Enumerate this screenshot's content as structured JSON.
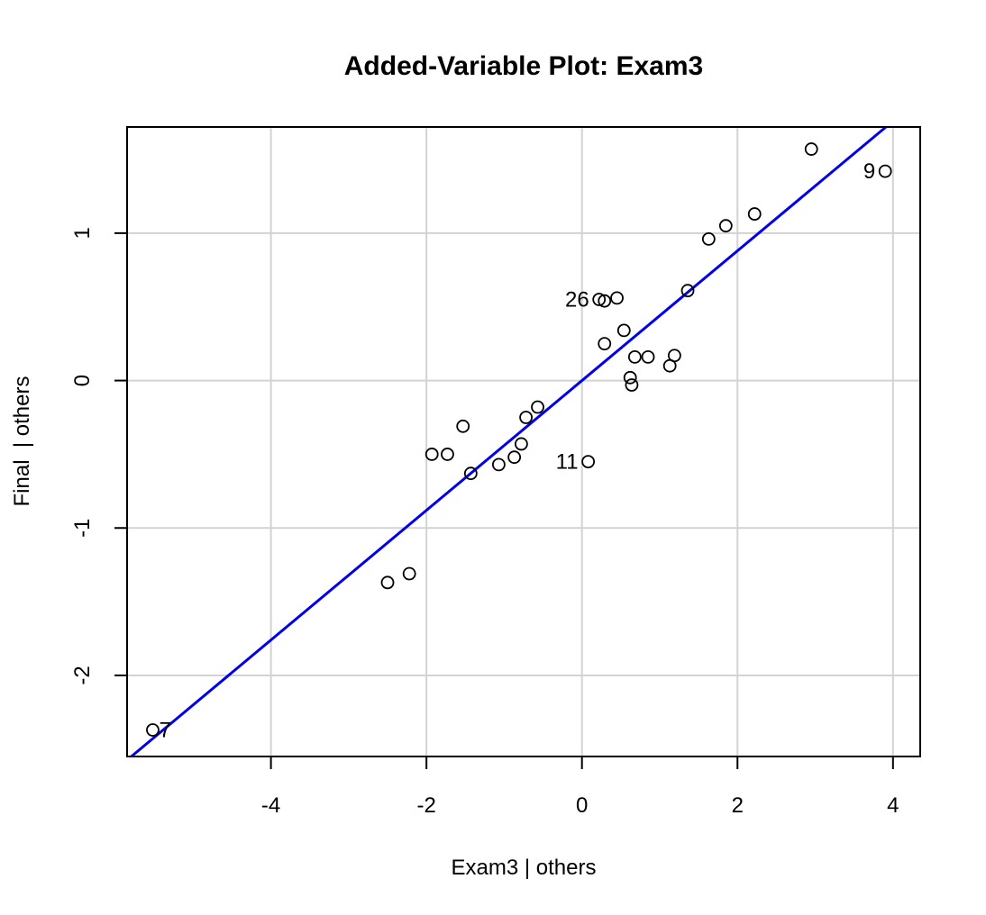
{
  "chart_data": {
    "type": "scatter",
    "title": "Added-Variable Plot: Exam3",
    "xlabel": "Exam3 | others",
    "ylabel": "Final  | others",
    "xlim": [
      -5.85,
      4.35
    ],
    "ylim": [
      -2.55,
      1.72
    ],
    "xticks": [
      -4,
      -2,
      0,
      2,
      4
    ],
    "yticks": [
      -2,
      -1,
      0,
      1
    ],
    "grid": true,
    "points": [
      {
        "x": -5.52,
        "y": -2.37,
        "label": "7"
      },
      {
        "x": -2.5,
        "y": -1.37
      },
      {
        "x": -2.22,
        "y": -1.31
      },
      {
        "x": -1.93,
        "y": -0.5
      },
      {
        "x": -1.73,
        "y": -0.5
      },
      {
        "x": -1.53,
        "y": -0.31
      },
      {
        "x": -1.43,
        "y": -0.63
      },
      {
        "x": -1.07,
        "y": -0.57
      },
      {
        "x": -0.87,
        "y": -0.52
      },
      {
        "x": -0.78,
        "y": -0.43
      },
      {
        "x": -0.72,
        "y": -0.25
      },
      {
        "x": -0.57,
        "y": -0.18
      },
      {
        "x": 0.08,
        "y": -0.55,
        "label": "11"
      },
      {
        "x": 0.22,
        "y": 0.55,
        "label": "26"
      },
      {
        "x": 0.29,
        "y": 0.54
      },
      {
        "x": 0.29,
        "y": 0.25
      },
      {
        "x": 0.45,
        "y": 0.56
      },
      {
        "x": 0.54,
        "y": 0.34
      },
      {
        "x": 0.62,
        "y": 0.02
      },
      {
        "x": 0.64,
        "y": -0.03
      },
      {
        "x": 0.68,
        "y": 0.16
      },
      {
        "x": 0.85,
        "y": 0.16
      },
      {
        "x": 1.13,
        "y": 0.1
      },
      {
        "x": 1.19,
        "y": 0.17
      },
      {
        "x": 1.36,
        "y": 0.61
      },
      {
        "x": 1.63,
        "y": 0.96
      },
      {
        "x": 1.85,
        "y": 1.05
      },
      {
        "x": 2.22,
        "y": 1.13
      },
      {
        "x": 2.95,
        "y": 1.57
      },
      {
        "x": 3.9,
        "y": 1.42,
        "label": "9"
      }
    ],
    "fit_line": {
      "slope": 0.44,
      "intercept": 0.0,
      "color": "#0000ee"
    },
    "colors": {
      "points": "#000000",
      "grid": "#d3d3d3",
      "line": "#0000ee"
    }
  }
}
